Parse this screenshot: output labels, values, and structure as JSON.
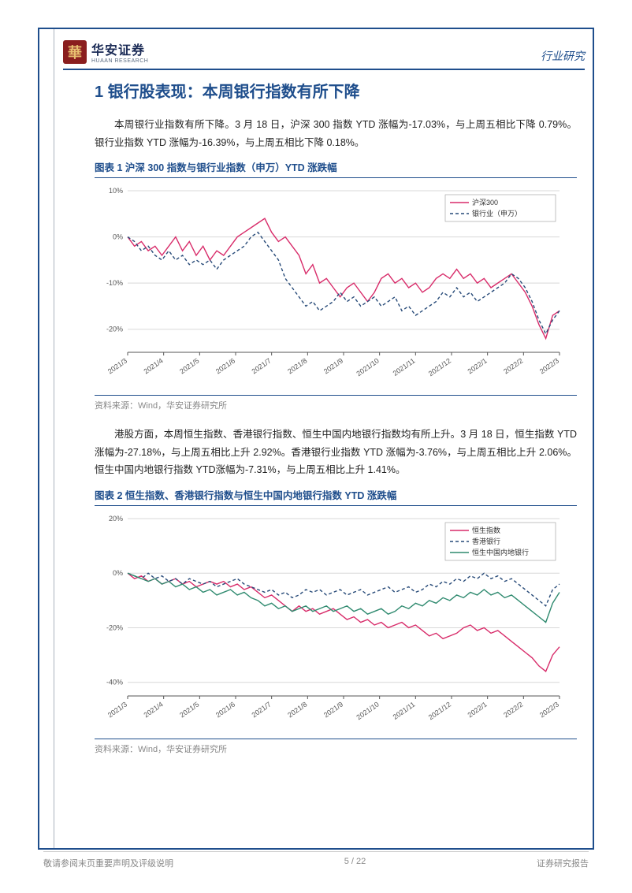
{
  "header": {
    "logo_main": "华安证券",
    "logo_sub": "HUAAN RESEARCH",
    "right": "行业研究"
  },
  "section_title": "1 银行股表现：本周银行指数有所下降",
  "para1": "本周银行业指数有所下降。3 月 18 日，沪深 300 指数 YTD 涨幅为-17.03%，与上周五相比下降 0.79%。银行业指数 YTD 涨幅为-16.39%，与上周五相比下降 0.18%。",
  "chart1": {
    "title": "图表 1 沪深 300 指数与银行业指数（申万）YTD 涨跌幅",
    "source": "资料来源：Wind，华安证券研究所",
    "ylim": [
      -25,
      10
    ],
    "yticks": [
      10,
      0,
      -10,
      -20
    ],
    "ytick_labels": [
      "10%",
      "0%",
      "-10%",
      "-20%"
    ],
    "xticks": [
      "2021/3",
      "2021/4",
      "2021/5",
      "2021/6",
      "2021/7",
      "2021/8",
      "2021/9",
      "2021/10",
      "2021/11",
      "2021/12",
      "2022/1",
      "2022/2",
      "2022/3"
    ],
    "grid_color": "#d8d8d8",
    "axis_color": "#555555",
    "tick_font": 9,
    "legend": [
      {
        "label": "沪深300",
        "color": "#d82c6a",
        "dash": "0"
      },
      {
        "label": "银行业（申万）",
        "color": "#274a78",
        "dash": "4,3"
      }
    ],
    "series": {
      "csi300": [
        0,
        -2,
        -1,
        -3,
        -2,
        -4,
        -2,
        0,
        -3,
        -1,
        -4,
        -2,
        -5,
        -3,
        -4,
        -2,
        0,
        1,
        2,
        3,
        4,
        1,
        -1,
        0,
        -2,
        -4,
        -8,
        -6,
        -10,
        -9,
        -11,
        -13,
        -11,
        -10,
        -12,
        -14,
        -12,
        -9,
        -8,
        -10,
        -9,
        -11,
        -10,
        -12,
        -11,
        -9,
        -8,
        -9,
        -7,
        -9,
        -8,
        -10,
        -9,
        -11,
        -10,
        -9,
        -8,
        -10,
        -12,
        -15,
        -19,
        -22,
        -17,
        -16
      ],
      "bank": [
        0,
        -1,
        -3,
        -2,
        -4,
        -5,
        -3,
        -5,
        -4,
        -6,
        -5,
        -6,
        -5,
        -7,
        -5,
        -4,
        -3,
        -2,
        0,
        1,
        -1,
        -3,
        -5,
        -9,
        -11,
        -13,
        -15,
        -14,
        -16,
        -15,
        -14,
        -12,
        -14,
        -13,
        -15,
        -14,
        -13,
        -15,
        -14,
        -13,
        -16,
        -15,
        -17,
        -16,
        -15,
        -14,
        -12,
        -13,
        -11,
        -13,
        -12,
        -14,
        -13,
        -12,
        -11,
        -10,
        -8,
        -9,
        -11,
        -14,
        -18,
        -21,
        -18,
        -16
      ]
    }
  },
  "para2": "港股方面，本周恒生指数、香港银行指数、恒生中国内地银行指数均有所上升。3 月 18 日，恒生指数 YTD 涨幅为-27.18%，与上周五相比上升 2.92%。香港银行业指数 YTD 涨幅为-3.76%，与上周五相比上升 2.06%。恒生中国内地银行指数 YTD涨幅为-7.31%，与上周五相比上升 1.41%。",
  "chart2": {
    "title": "图表 2 恒生指数、香港银行指数与恒生中国内地银行指数 YTD 涨跌幅",
    "source": "资料来源：Wind，华安证券研究所",
    "ylim": [
      -45,
      20
    ],
    "yticks": [
      20,
      0,
      -20,
      -40
    ],
    "ytick_labels": [
      "20%",
      "0%",
      "-20%",
      "-40%"
    ],
    "xticks": [
      "2021/3",
      "2021/4",
      "2021/5",
      "2021/6",
      "2021/7",
      "2021/8",
      "2021/9",
      "2021/10",
      "2021/11",
      "2021/12",
      "2022/1",
      "2022/2",
      "2022/3"
    ],
    "grid_color": "#d8d8d8",
    "axis_color": "#555555",
    "tick_font": 9,
    "legend": [
      {
        "label": "恒生指数",
        "color": "#d82c6a",
        "dash": "0"
      },
      {
        "label": "香港银行",
        "color": "#274a78",
        "dash": "4,3"
      },
      {
        "label": "恒生中国内地银行",
        "color": "#2f8a6f",
        "dash": "0"
      }
    ],
    "series": {
      "hsi": [
        0,
        -2,
        -1,
        -3,
        -2,
        -4,
        -3,
        -2,
        -4,
        -3,
        -5,
        -4,
        -3,
        -4,
        -3,
        -5,
        -4,
        -6,
        -5,
        -7,
        -9,
        -8,
        -10,
        -12,
        -14,
        -12,
        -14,
        -13,
        -15,
        -14,
        -13,
        -15,
        -17,
        -16,
        -18,
        -17,
        -19,
        -18,
        -20,
        -19,
        -18,
        -20,
        -19,
        -21,
        -23,
        -22,
        -24,
        -23,
        -22,
        -20,
        -19,
        -21,
        -20,
        -22,
        -21,
        -23,
        -25,
        -27,
        -29,
        -31,
        -34,
        -36,
        -30,
        -27
      ],
      "hkbank": [
        0,
        -1,
        -2,
        0,
        -2,
        -1,
        -3,
        -2,
        -4,
        -2,
        -3,
        -4,
        -3,
        -5,
        -4,
        -3,
        -2,
        -4,
        -5,
        -6,
        -7,
        -6,
        -8,
        -7,
        -9,
        -8,
        -6,
        -7,
        -6,
        -8,
        -7,
        -6,
        -8,
        -7,
        -6,
        -8,
        -7,
        -6,
        -5,
        -7,
        -6,
        -5,
        -7,
        -6,
        -4,
        -5,
        -3,
        -4,
        -2,
        -3,
        -1,
        -2,
        0,
        -2,
        -1,
        -3,
        -2,
        -4,
        -6,
        -8,
        -10,
        -12,
        -6,
        -4
      ],
      "mainland": [
        0,
        -1,
        -2,
        -3,
        -2,
        -4,
        -3,
        -5,
        -4,
        -6,
        -5,
        -7,
        -6,
        -8,
        -7,
        -6,
        -8,
        -7,
        -9,
        -10,
        -12,
        -11,
        -13,
        -12,
        -14,
        -13,
        -12,
        -14,
        -13,
        -12,
        -14,
        -13,
        -12,
        -14,
        -13,
        -15,
        -14,
        -13,
        -15,
        -14,
        -12,
        -13,
        -11,
        -12,
        -10,
        -11,
        -9,
        -10,
        -8,
        -9,
        -7,
        -8,
        -6,
        -8,
        -7,
        -9,
        -8,
        -10,
        -12,
        -14,
        -16,
        -18,
        -11,
        -7
      ]
    }
  },
  "footer": {
    "left": "敬请参阅末页重要声明及评级说明",
    "center": "5 / 22",
    "right": "证券研究报告"
  }
}
